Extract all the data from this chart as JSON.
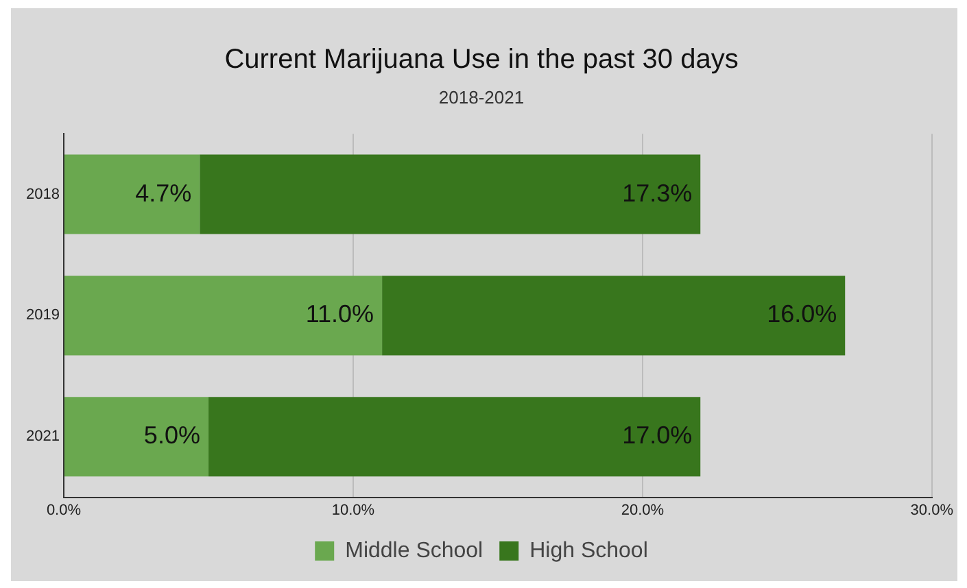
{
  "chart_data": {
    "type": "bar",
    "orientation": "horizontal",
    "stacked": true,
    "title": "Current Marijuana Use in the past 30 days",
    "subtitle": "2018-2021",
    "categories": [
      "2018",
      "2019",
      "2021"
    ],
    "series": [
      {
        "name": "Middle School",
        "color": "#6aa84f",
        "values": [
          4.7,
          11.0,
          5.0
        ],
        "value_labels": [
          "4.7%",
          "11.0%",
          "5.0%"
        ]
      },
      {
        "name": "High School",
        "color": "#38761d",
        "values": [
          17.3,
          16.0,
          17.0
        ],
        "value_labels": [
          "17.3%",
          "16.0%",
          "17.0%"
        ]
      }
    ],
    "xlim": [
      0,
      30
    ],
    "xticks": [
      {
        "value": 0,
        "label": "0.0%"
      },
      {
        "value": 10,
        "label": "10.0%"
      },
      {
        "value": 20,
        "label": "20.0%"
      },
      {
        "value": 30,
        "label": "30.0%"
      }
    ],
    "grid": "x",
    "legend": "bottom"
  }
}
